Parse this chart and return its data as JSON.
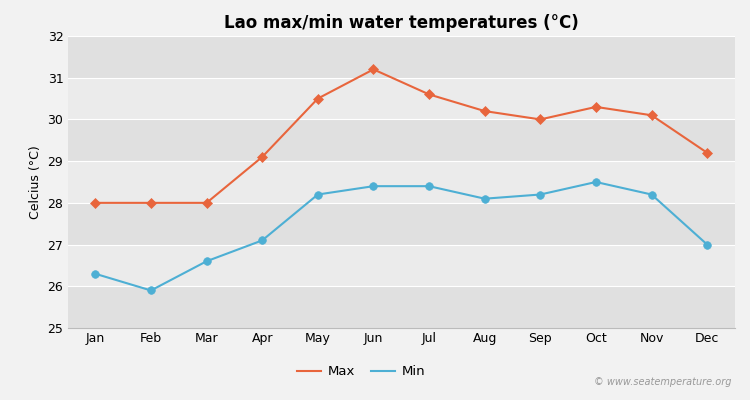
{
  "title": "Lao max/min water temperatures (°C)",
  "ylabel": "Celcius (°C)",
  "months": [
    "Jan",
    "Feb",
    "Mar",
    "Apr",
    "May",
    "Jun",
    "Jul",
    "Aug",
    "Sep",
    "Oct",
    "Nov",
    "Dec"
  ],
  "max_temps": [
    28.0,
    28.0,
    28.0,
    29.1,
    30.5,
    31.2,
    30.6,
    30.2,
    30.0,
    30.3,
    30.1,
    29.2
  ],
  "min_temps": [
    26.3,
    25.9,
    26.6,
    27.1,
    28.2,
    28.4,
    28.4,
    28.1,
    28.2,
    28.5,
    28.2,
    27.0
  ],
  "max_color": "#e8653c",
  "min_color": "#4dafd4",
  "bg_color": "#f2f2f2",
  "plot_bg_light": "#ebebeb",
  "plot_bg_dark": "#e0e0e0",
  "ylim": [
    25,
    32
  ],
  "yticks": [
    25,
    26,
    27,
    28,
    29,
    30,
    31,
    32
  ],
  "title_fontsize": 12,
  "label_fontsize": 9,
  "tick_fontsize": 9,
  "legend_labels": [
    "Max",
    "Min"
  ],
  "watermark": "© www.seatemperature.org"
}
